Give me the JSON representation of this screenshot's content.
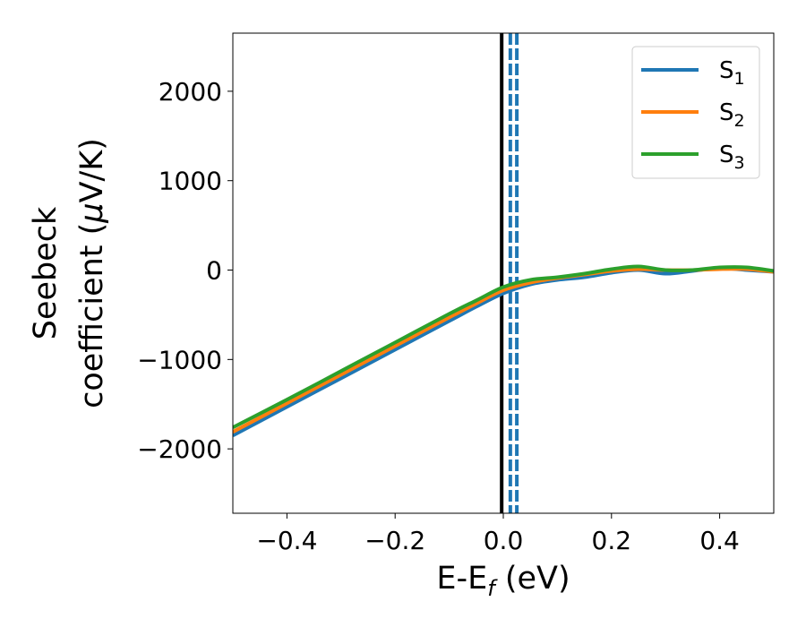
{
  "chart_data": {
    "type": "line",
    "xlabel_main": "E-E",
    "xlabel_sub": "f",
    "xlabel_unit": " (eV)",
    "ylabel_line1": "Seebeck",
    "ylabel_line2": "coefficient  (",
    "ylabel_mu": "μ",
    "ylabel_unit": "V/K)",
    "xlim": [
      -0.5,
      0.5
    ],
    "ylim": [
      -2720,
      2650
    ],
    "x_ticks": [
      -0.4,
      -0.2,
      0.0,
      0.2,
      0.4
    ],
    "x_tick_labels": [
      "−0.4",
      "−0.2",
      "0.0",
      "0.2",
      "0.4"
    ],
    "y_ticks": [
      -2000,
      -1000,
      0,
      1000,
      2000
    ],
    "y_tick_labels": [
      "−2000",
      "−1000",
      "0",
      "1000",
      "2000"
    ],
    "grid": false,
    "legend_position": "top-right",
    "vline_solid_x": -0.003,
    "vline_solid_color": "#000000",
    "vline_dashed_x": [
      0.013,
      0.025
    ],
    "vline_dashed_color": "#1f77b4",
    "series": [
      {
        "name_base": "S",
        "name_sub": "1",
        "color": "#1f77b4",
        "x": [
          -0.5,
          -0.4,
          -0.3,
          -0.2,
          -0.1,
          -0.05,
          0.0,
          0.05,
          0.1,
          0.15,
          0.2,
          0.25,
          0.3,
          0.35,
          0.4,
          0.45,
          0.5
        ],
        "y": [
          -1850,
          -1530,
          -1210,
          -890,
          -570,
          -410,
          -260,
          -160,
          -110,
          -80,
          -30,
          0,
          -40,
          -10,
          20,
          0,
          -20
        ]
      },
      {
        "name_base": "S",
        "name_sub": "2",
        "color": "#ff7f0e",
        "x": [
          -0.5,
          -0.4,
          -0.3,
          -0.2,
          -0.1,
          -0.05,
          0.0,
          0.05,
          0.1,
          0.15,
          0.2,
          0.25,
          0.3,
          0.35,
          0.4,
          0.45,
          0.5
        ],
        "y": [
          -1810,
          -1490,
          -1170,
          -850,
          -530,
          -375,
          -225,
          -140,
          -90,
          -50,
          -10,
          10,
          0,
          0,
          10,
          10,
          -20
        ]
      },
      {
        "name_base": "S",
        "name_sub": "3",
        "color": "#2ca02c",
        "x": [
          -0.5,
          -0.4,
          -0.3,
          -0.2,
          -0.1,
          -0.05,
          0.0,
          0.05,
          0.1,
          0.15,
          0.2,
          0.25,
          0.3,
          0.35,
          0.4,
          0.45,
          0.5
        ],
        "y": [
          -1760,
          -1450,
          -1130,
          -810,
          -490,
          -340,
          -190,
          -110,
          -80,
          -40,
          10,
          40,
          0,
          0,
          30,
          30,
          -10
        ]
      }
    ]
  }
}
